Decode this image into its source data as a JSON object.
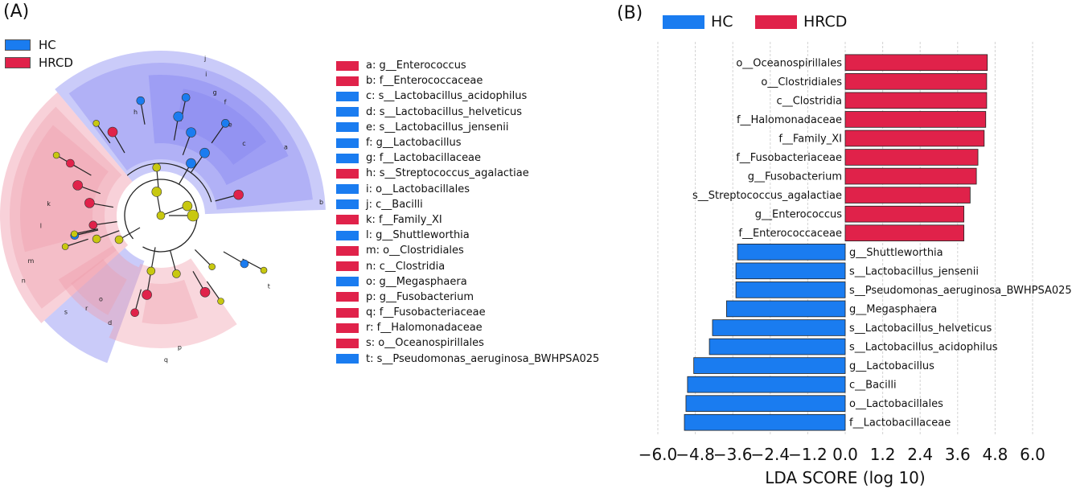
{
  "panel_a": {
    "label": "(A)",
    "legend": [
      {
        "name": "HC",
        "color": "#1a7cf0"
      },
      {
        "name": "HRCD",
        "color": "#e0224a"
      }
    ],
    "taxa": [
      {
        "key": "a: g__Enterococcus",
        "group": "HRCD"
      },
      {
        "key": "b: f__Enterococcaceae",
        "group": "HRCD"
      },
      {
        "key": "c: s__Lactobacillus_acidophilus",
        "group": "HC"
      },
      {
        "key": "d: s__Lactobacillus_helveticus",
        "group": "HC"
      },
      {
        "key": "e: s__Lactobacillus_jensenii",
        "group": "HC"
      },
      {
        "key": "f: g__Lactobacillus",
        "group": "HC"
      },
      {
        "key": "g: f__Lactobacillaceae",
        "group": "HC"
      },
      {
        "key": "h: s__Streptococcus_agalactiae",
        "group": "HRCD"
      },
      {
        "key": "i: o__Lactobacillales",
        "group": "HC"
      },
      {
        "key": "j: c__Bacilli",
        "group": "HC"
      },
      {
        "key": "k: f__Family_XI",
        "group": "HRCD"
      },
      {
        "key": "l: g__Shuttleworthia",
        "group": "HC"
      },
      {
        "key": "m: o__Clostridiales",
        "group": "HRCD"
      },
      {
        "key": "n: c__Clostridia",
        "group": "HRCD"
      },
      {
        "key": "o: g__Megasphaera",
        "group": "HC"
      },
      {
        "key": "p: g__Fusobacterium",
        "group": "HRCD"
      },
      {
        "key": "q: f__Fusobacteriaceae",
        "group": "HRCD"
      },
      {
        "key": "r: f__Halomonadaceae",
        "group": "HRCD"
      },
      {
        "key": "s: o__Oceanospirillales",
        "group": "HRCD"
      },
      {
        "key": "t: s__Pseudomonas_aeruginosa_BWHPSA025",
        "group": "HC"
      }
    ],
    "cladogram_letters": [
      "a",
      "b",
      "c",
      "d",
      "e",
      "f",
      "g",
      "h",
      "i",
      "j",
      "k",
      "l",
      "m",
      "n",
      "o",
      "p",
      "q",
      "r",
      "s",
      "t"
    ]
  },
  "chart_data": {
    "type": "bar",
    "panel_label": "(B)",
    "orientation": "horizontal",
    "xlabel": "LDA SCORE (log 10)",
    "xlim": [
      -6.0,
      6.0
    ],
    "xticks": [
      "−6.0",
      "−4.8",
      "−3.6",
      "−2.4",
      "−1.2",
      "0.0",
      "1.2",
      "2.4",
      "3.6",
      "4.8",
      "6.0"
    ],
    "grid": true,
    "legend": [
      {
        "name": "HC",
        "color": "#1a7cf0"
      },
      {
        "name": "HRCD",
        "color": "#e0224a"
      }
    ],
    "legend_position": "top",
    "bars": [
      {
        "label": "o__Oceanospirillales",
        "value": 4.55,
        "group": "HRCD"
      },
      {
        "label": "o__Clostridiales",
        "value": 4.53,
        "group": "HRCD"
      },
      {
        "label": "c__Clostridia",
        "value": 4.53,
        "group": "HRCD"
      },
      {
        "label": "f__Halomonadaceae",
        "value": 4.5,
        "group": "HRCD"
      },
      {
        "label": "f__Family_XI",
        "value": 4.45,
        "group": "HRCD"
      },
      {
        "label": "f__Fusobacteriaceae",
        "value": 4.25,
        "group": "HRCD"
      },
      {
        "label": "g__Fusobacterium",
        "value": 4.2,
        "group": "HRCD"
      },
      {
        "label": "s__Streptococcus_agalactiae",
        "value": 4.0,
        "group": "HRCD"
      },
      {
        "label": "g__Enterococcus",
        "value": 3.8,
        "group": "HRCD"
      },
      {
        "label": "f__Enterococcaceae",
        "value": 3.8,
        "group": "HRCD"
      },
      {
        "label": "g__Shuttleworthia",
        "value": -3.45,
        "group": "HC"
      },
      {
        "label": "s__Lactobacillus_jensenii",
        "value": -3.5,
        "group": "HC"
      },
      {
        "label": "s__Pseudomonas_aeruginosa_BWHPSA025",
        "value": -3.5,
        "group": "HC"
      },
      {
        "label": "g__Megasphaera",
        "value": -3.8,
        "group": "HC"
      },
      {
        "label": "s__Lactobacillus_helveticus",
        "value": -4.25,
        "group": "HC"
      },
      {
        "label": "s__Lactobacillus_acidophilus",
        "value": -4.35,
        "group": "HC"
      },
      {
        "label": "g__Lactobacillus",
        "value": -4.85,
        "group": "HC"
      },
      {
        "label": "c__Bacilli",
        "value": -5.05,
        "group": "HC"
      },
      {
        "label": "o__Lactobacillales",
        "value": -5.1,
        "group": "HC"
      },
      {
        "label": "f__Lactobacillaceae",
        "value": -5.15,
        "group": "HC"
      }
    ]
  }
}
